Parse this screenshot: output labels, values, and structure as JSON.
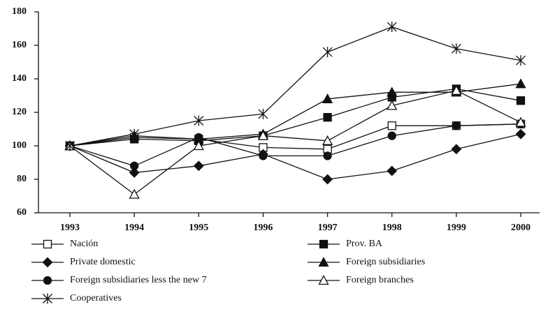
{
  "chart_data": {
    "type": "line",
    "categories": [
      "1993",
      "1994",
      "1995",
      "1996",
      "1997",
      "1998",
      "1999",
      "2000"
    ],
    "ylim": [
      60,
      180
    ],
    "yticks": [
      60,
      80,
      100,
      120,
      140,
      160,
      180
    ],
    "series": [
      {
        "name": "Nación",
        "color": "#111111",
        "marker": "square-open",
        "values": [
          100,
          105,
          104,
          99,
          98,
          112,
          112,
          113
        ]
      },
      {
        "name": "Prov. BA",
        "color": "#111111",
        "marker": "square",
        "values": [
          100,
          104,
          103,
          106,
          117,
          129,
          134,
          127
        ]
      },
      {
        "name": "Private domestic",
        "color": "#111111",
        "marker": "diamond",
        "values": [
          100,
          84,
          88,
          95,
          80,
          85,
          98,
          107
        ]
      },
      {
        "name": "Foreign subsidiaries",
        "color": "#111111",
        "marker": "triangle",
        "values": [
          100,
          106,
          104,
          107,
          128,
          132,
          132,
          137
        ]
      },
      {
        "name": "Foreign subsidiaries less the new 7",
        "color": "#111111",
        "marker": "circle",
        "values": [
          100,
          88,
          105,
          94,
          94,
          106,
          112,
          113
        ]
      },
      {
        "name": "Foreign branches",
        "color": "#111111",
        "marker": "triangle-open",
        "values": [
          100,
          71,
          100,
          106,
          103,
          124,
          133,
          114
        ]
      },
      {
        "name": "Cooperatives",
        "color": "#111111",
        "marker": "asterisk",
        "values": [
          100,
          107,
          115,
          119,
          156,
          171,
          158,
          151
        ]
      }
    ]
  }
}
